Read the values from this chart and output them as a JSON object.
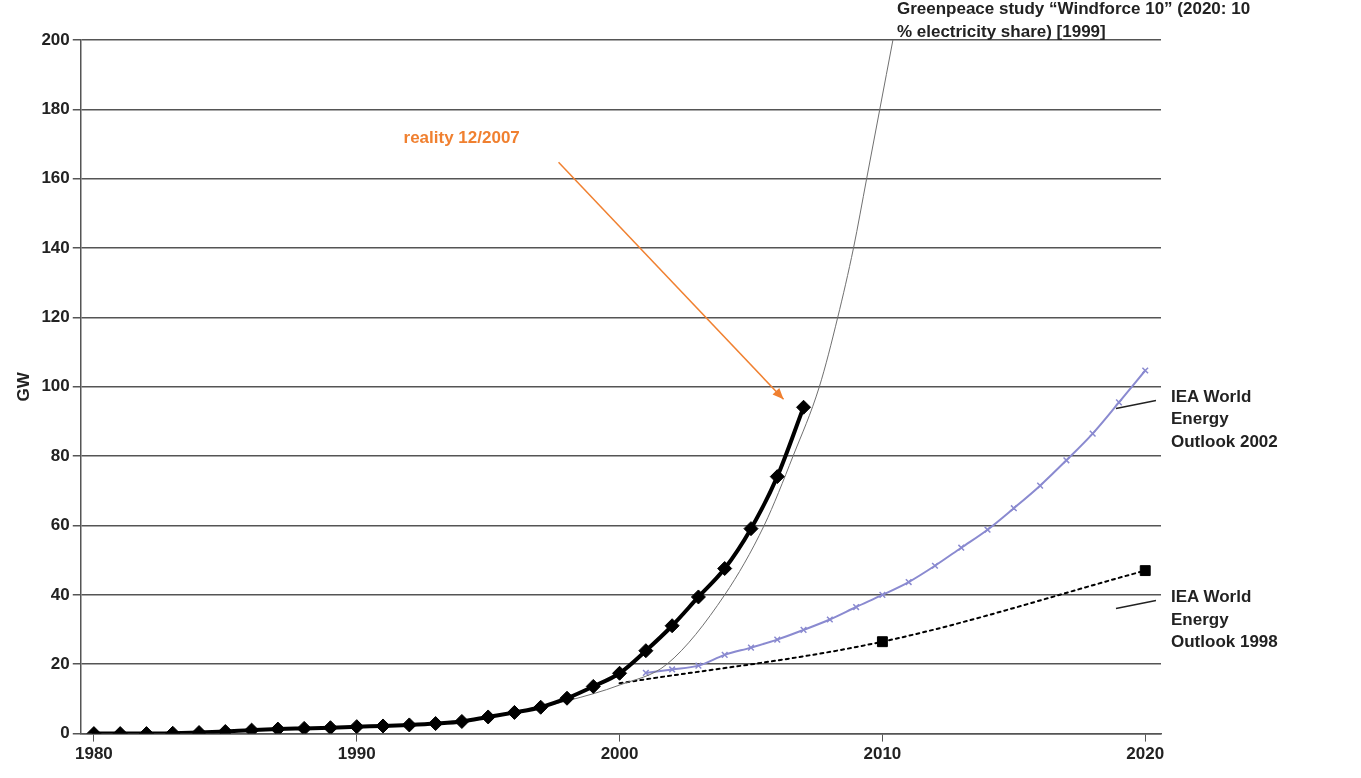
{
  "chart_data": {
    "type": "line",
    "ylabel": "GW",
    "xlim": [
      1979.5,
      2020.6
    ],
    "xticks": [
      1980,
      1990,
      2000,
      2010,
      2020
    ],
    "ylim": [
      0,
      200
    ],
    "yticks": [
      0,
      20,
      40,
      60,
      80,
      100,
      120,
      140,
      160,
      180,
      200
    ],
    "grid": "y",
    "series": [
      {
        "type": "line",
        "color": "#000000",
        "marker": "diamond",
        "x": [
          1980,
          1981,
          1982,
          1983,
          1984,
          1985,
          1986,
          1987,
          1988,
          1989,
          1990,
          1991,
          1992,
          1993,
          1994,
          1995,
          1996,
          1997,
          1998,
          1999,
          2000,
          2001,
          2002,
          2003,
          2004,
          2005,
          2006,
          2007
        ],
        "values": [
          0,
          0,
          0,
          0.1,
          0.3,
          0.6,
          1,
          1.3,
          1.5,
          1.7,
          2,
          2.2,
          2.5,
          2.9,
          3.5,
          4.8,
          6.1,
          7.6,
          10.2,
          13.6,
          17.4,
          23.9,
          31.1,
          39.4,
          47.6,
          59.1,
          74.1,
          94.1
        ]
      },
      {
        "name": "Greenpeace study “Windforce 10” (2020: 10 % electricity share) [1999]",
        "type": "line",
        "color": "#707070",
        "marker": "none",
        "x": [
          1997,
          1998,
          1999,
          2000,
          2001.8,
          2004,
          2005.5,
          2006.6,
          2007.6,
          2008.3,
          2008.9,
          2009.4,
          2009.9,
          2010.4
        ],
        "values": [
          7.5,
          null,
          11.5,
          14,
          20,
          40,
          60,
          80,
          100,
          120,
          140,
          160,
          180,
          200
        ]
      },
      {
        "name": "IEA World Energy Outlook 2002",
        "type": "line",
        "color": "#8a8ad0",
        "marker": "cross",
        "x": [
          2001,
          2002,
          2003,
          2004,
          2005,
          2006,
          2007,
          2008,
          2009,
          2010,
          2011,
          2012,
          2013,
          2014,
          2015,
          2016,
          2017,
          2018,
          2019,
          2020
        ],
        "values": [
          17.5,
          18.5,
          19.6,
          22.7,
          24.8,
          27.1,
          29.9,
          32.9,
          36.5,
          40,
          43.7,
          48.4,
          53.6,
          58.8,
          65,
          71.5,
          78.8,
          86.5,
          95.5,
          104.7
        ]
      },
      {
        "name": "IEA World Energy Outlook 1998",
        "type": "line",
        "color": "#000000",
        "line_style": "dotted",
        "marker": "none",
        "x": [
          2000,
          2010,
          2020
        ],
        "values": [
          14.5,
          26.5,
          47
        ]
      },
      {
        "type": "scatter",
        "color": "#000000",
        "marker": "square",
        "x": [
          2010,
          2020
        ],
        "values": [
          26.5,
          47
        ]
      }
    ],
    "annotations": [
      "reality 12/2007"
    ]
  }
}
